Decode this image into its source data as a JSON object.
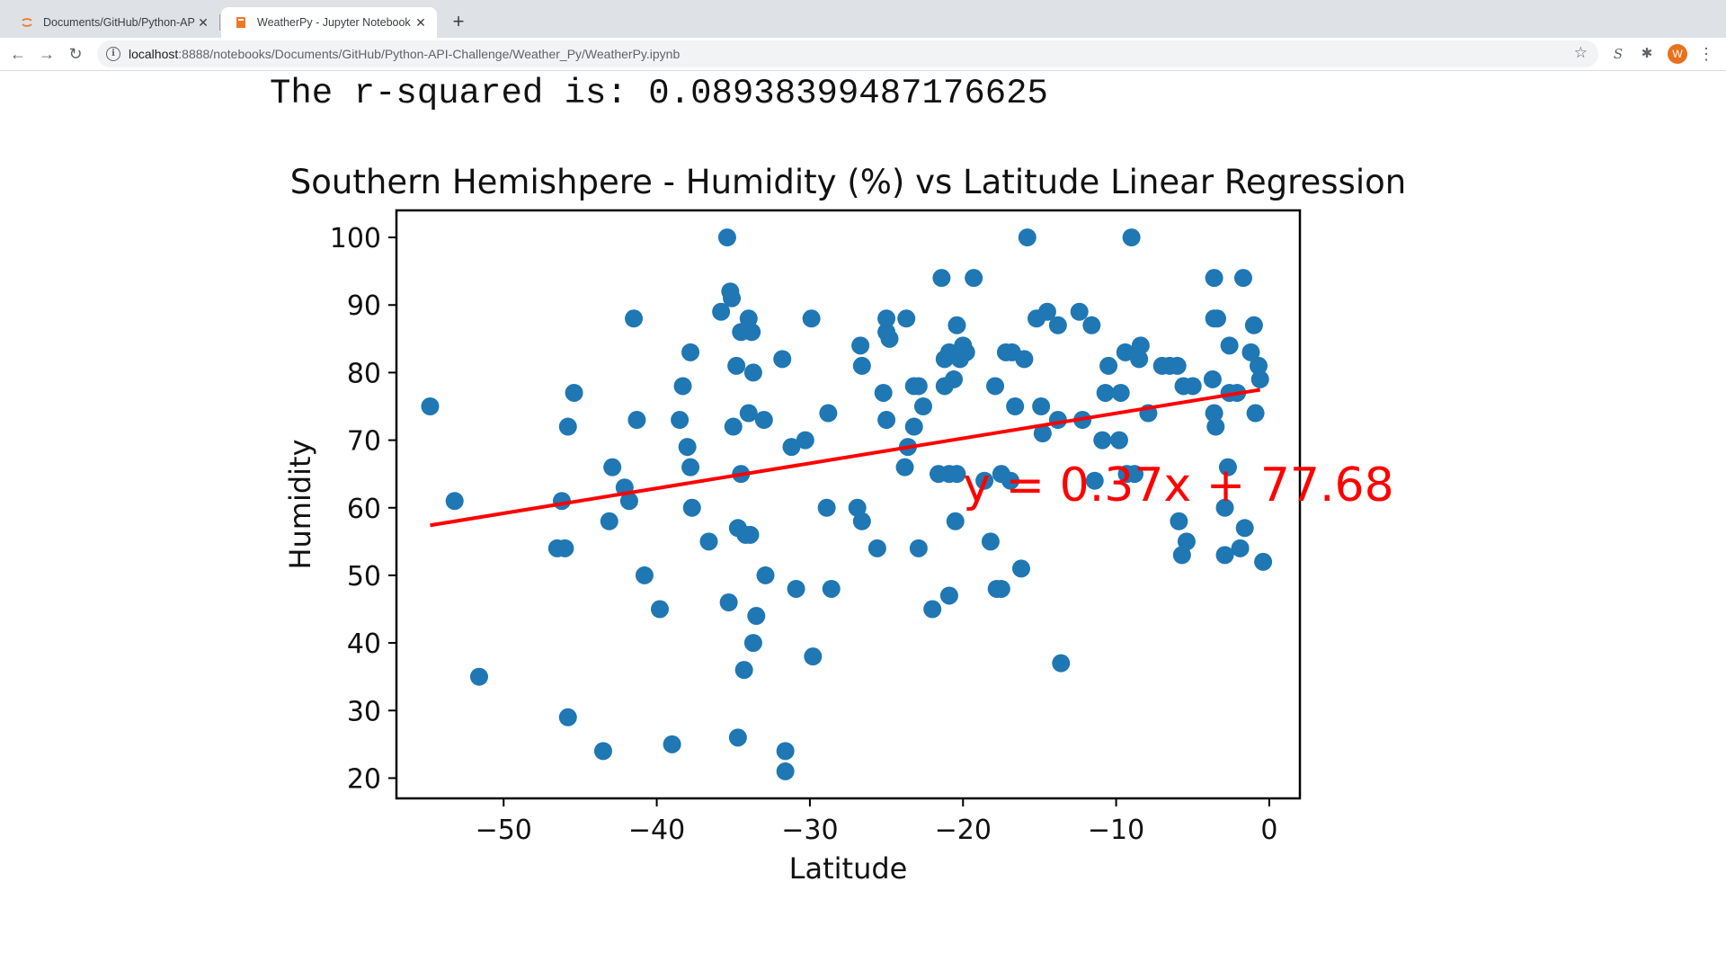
{
  "browser": {
    "tabs": [
      {
        "title": "Documents/GitHub/Python-API",
        "active": false
      },
      {
        "title": "WeatherPy - Jupyter Notebook",
        "active": true
      }
    ],
    "url_host": "localhost",
    "url_path": ":8888/notebooks/Documents/GitHub/Python-API-Challenge/Weather_Py/WeatherPy.ipynb",
    "avatar_letter": "W"
  },
  "output": {
    "rsquared_text": "The r-squared is: 0.08938399487176625"
  },
  "chart_data": {
    "type": "scatter",
    "title": "Southern Hemishpere - Humidity (%) vs Latitude Linear Regression",
    "xlabel": "Latitude",
    "ylabel": "Humidity",
    "xlim": [
      -57,
      2
    ],
    "ylim": [
      17,
      104
    ],
    "xticks": [
      -50,
      -40,
      -30,
      -20,
      -10,
      0
    ],
    "xtick_labels": [
      "−50",
      "−40",
      "−30",
      "−20",
      "−10",
      "0"
    ],
    "yticks": [
      20,
      30,
      40,
      50,
      60,
      70,
      80,
      90,
      100
    ],
    "grid": false,
    "point_color": "#1f77b4",
    "regression": {
      "slope": 0.37,
      "intercept": 77.68,
      "x_range": [
        -54.8,
        -0.6
      ],
      "color": "#ff0000",
      "equation": "y = 0.37x + 77.68",
      "equation_anchor": [
        -20,
        61
      ]
    },
    "points": [
      [
        -54.8,
        75
      ],
      [
        -53.2,
        61
      ],
      [
        -51.6,
        35
      ],
      [
        -46.5,
        54
      ],
      [
        -46.2,
        61
      ],
      [
        -46.0,
        54
      ],
      [
        -45.8,
        72
      ],
      [
        -45.8,
        29
      ],
      [
        -45.4,
        77
      ],
      [
        -43.5,
        24
      ],
      [
        -43.1,
        58
      ],
      [
        -42.9,
        66
      ],
      [
        -42.1,
        63
      ],
      [
        -41.8,
        61
      ],
      [
        -41.5,
        88
      ],
      [
        -41.3,
        73
      ],
      [
        -40.8,
        50
      ],
      [
        -39.8,
        45
      ],
      [
        -39.0,
        25
      ],
      [
        -38.5,
        73
      ],
      [
        -38.3,
        78
      ],
      [
        -38.0,
        69
      ],
      [
        -37.8,
        66
      ],
      [
        -37.8,
        83
      ],
      [
        -37.7,
        60
      ],
      [
        -36.6,
        55
      ],
      [
        -35.8,
        89
      ],
      [
        -35.4,
        100
      ],
      [
        -35.3,
        46
      ],
      [
        -35.2,
        92
      ],
      [
        -35.1,
        91
      ],
      [
        -35.0,
        72
      ],
      [
        -34.8,
        81
      ],
      [
        -34.7,
        57
      ],
      [
        -34.7,
        26
      ],
      [
        -34.5,
        86
      ],
      [
        -34.5,
        65
      ],
      [
        -34.3,
        36
      ],
      [
        -34.2,
        56
      ],
      [
        -34.0,
        74
      ],
      [
        -34.0,
        88
      ],
      [
        -33.9,
        56
      ],
      [
        -33.8,
        86
      ],
      [
        -33.7,
        40
      ],
      [
        -33.7,
        80
      ],
      [
        -33.5,
        44
      ],
      [
        -33.0,
        73
      ],
      [
        -32.9,
        50
      ],
      [
        -31.8,
        82
      ],
      [
        -31.6,
        24
      ],
      [
        -31.6,
        21
      ],
      [
        -31.2,
        69
      ],
      [
        -30.9,
        48
      ],
      [
        -30.3,
        70
      ],
      [
        -29.9,
        88
      ],
      [
        -29.8,
        38
      ],
      [
        -28.9,
        60
      ],
      [
        -28.8,
        74
      ],
      [
        -28.6,
        48
      ],
      [
        -26.9,
        60
      ],
      [
        -26.7,
        84
      ],
      [
        -26.6,
        81
      ],
      [
        -26.6,
        58
      ],
      [
        -25.6,
        54
      ],
      [
        -25.2,
        77
      ],
      [
        -25.0,
        86
      ],
      [
        -25.0,
        88
      ],
      [
        -25.0,
        73
      ],
      [
        -24.8,
        85
      ],
      [
        -23.8,
        66
      ],
      [
        -23.7,
        88
      ],
      [
        -23.6,
        69
      ],
      [
        -23.2,
        72
      ],
      [
        -23.2,
        78
      ],
      [
        -22.9,
        54
      ],
      [
        -22.9,
        78
      ],
      [
        -22.6,
        75
      ],
      [
        -22.0,
        45
      ],
      [
        -21.6,
        65
      ],
      [
        -21.4,
        94
      ],
      [
        -21.2,
        78
      ],
      [
        -21.2,
        82
      ],
      [
        -20.9,
        47
      ],
      [
        -20.9,
        65
      ],
      [
        -20.9,
        83
      ],
      [
        -20.6,
        79
      ],
      [
        -20.5,
        58
      ],
      [
        -20.4,
        65
      ],
      [
        -20.4,
        87
      ],
      [
        -20.2,
        82
      ],
      [
        -20.0,
        84
      ],
      [
        -19.8,
        83
      ],
      [
        -19.3,
        94
      ],
      [
        -18.6,
        64
      ],
      [
        -18.2,
        55
      ],
      [
        -17.9,
        78
      ],
      [
        -17.8,
        48
      ],
      [
        -17.5,
        48
      ],
      [
        -17.5,
        65
      ],
      [
        -17.2,
        83
      ],
      [
        -16.9,
        64
      ],
      [
        -16.8,
        83
      ],
      [
        -16.6,
        75
      ],
      [
        -16.2,
        51
      ],
      [
        -16.0,
        82
      ],
      [
        -15.8,
        100
      ],
      [
        -15.2,
        88
      ],
      [
        -14.9,
        75
      ],
      [
        -14.8,
        71
      ],
      [
        -14.5,
        89
      ],
      [
        -13.8,
        87
      ],
      [
        -13.8,
        73
      ],
      [
        -13.6,
        37
      ],
      [
        -12.4,
        89
      ],
      [
        -12.2,
        73
      ],
      [
        -11.6,
        87
      ],
      [
        -11.4,
        64
      ],
      [
        -10.9,
        70
      ],
      [
        -10.7,
        77
      ],
      [
        -10.5,
        81
      ],
      [
        -9.8,
        70
      ],
      [
        -9.7,
        77
      ],
      [
        -9.4,
        83
      ],
      [
        -9.3,
        65
      ],
      [
        -9.0,
        100
      ],
      [
        -8.8,
        65
      ],
      [
        -8.5,
        82
      ],
      [
        -8.4,
        84
      ],
      [
        -7.9,
        74
      ],
      [
        -7.0,
        81
      ],
      [
        -6.5,
        81
      ],
      [
        -6.0,
        81
      ],
      [
        -5.9,
        58
      ],
      [
        -5.7,
        53
      ],
      [
        -5.6,
        78
      ],
      [
        -5.4,
        55
      ],
      [
        -5.0,
        78
      ],
      [
        -3.7,
        79
      ],
      [
        -3.6,
        88
      ],
      [
        -3.6,
        94
      ],
      [
        -3.6,
        74
      ],
      [
        -3.5,
        72
      ],
      [
        -3.4,
        88
      ],
      [
        -2.9,
        60
      ],
      [
        -2.9,
        53
      ],
      [
        -2.7,
        66
      ],
      [
        -2.6,
        84
      ],
      [
        -2.6,
        77
      ],
      [
        -2.1,
        77
      ],
      [
        -1.9,
        54
      ],
      [
        -1.7,
        94
      ],
      [
        -1.6,
        57
      ],
      [
        -1.2,
        83
      ],
      [
        -1.0,
        87
      ],
      [
        -0.9,
        74
      ],
      [
        -0.7,
        81
      ],
      [
        -0.6,
        79
      ],
      [
        -0.4,
        52
      ]
    ]
  }
}
